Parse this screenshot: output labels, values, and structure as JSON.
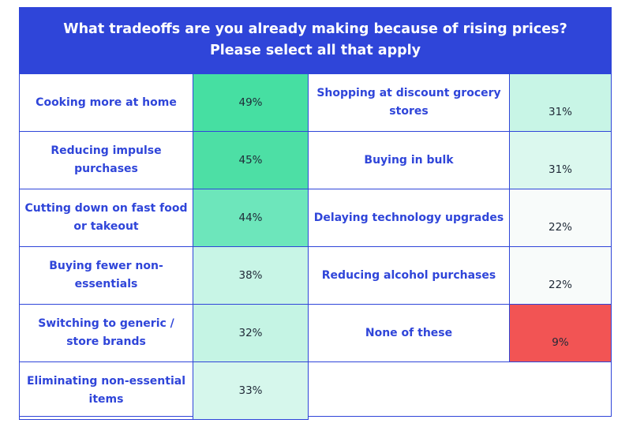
{
  "chart_data": {
    "type": "table",
    "title": "What tradeoffs are you already making because of rising prices?",
    "subtitle": "Please select all that apply",
    "rows": [
      {
        "label": "Cooking more at home",
        "value": "49%",
        "pct": 49,
        "color": "#46dfa2"
      },
      {
        "label": "Reducing impulse purchases",
        "value": "45%",
        "pct": 45,
        "color": "#4ddfa5"
      },
      {
        "label": "Cutting down on fast food or takeout",
        "value": "44%",
        "pct": 44,
        "color": "#6de6bb"
      },
      {
        "label": "Buying fewer non-essentials",
        "value": "38%",
        "pct": 38,
        "color": "#c8f5e6"
      },
      {
        "label": "Switching to generic / store brands",
        "value": "32%",
        "pct": 32,
        "color": "#c5f4e4"
      },
      {
        "label": "Eliminating non-essential items",
        "value": "33%",
        "pct": 33,
        "color": "#d6f7ec"
      },
      {
        "label": "Shopping at discount grocery stores",
        "value": "31%",
        "pct": 31,
        "color": "#c8f5e6"
      },
      {
        "label": "Buying in bulk",
        "value": "31%",
        "pct": 31,
        "color": "#dbf8ee"
      },
      {
        "label": "Delaying technology upgrades",
        "value": "22%",
        "pct": 22,
        "color": "#f8fbfa"
      },
      {
        "label": "Reducing alcohol purchases",
        "value": "22%",
        "pct": 22,
        "color": "#f8fbfa"
      },
      {
        "label": "None of these",
        "value": "9%",
        "pct": 9,
        "color": "#f25454"
      }
    ]
  },
  "header": {
    "line1": "What tradeoffs are you already making because of rising prices?",
    "line2": "Please select all that apply"
  },
  "colors": {
    "accent": "#2f45d9"
  }
}
